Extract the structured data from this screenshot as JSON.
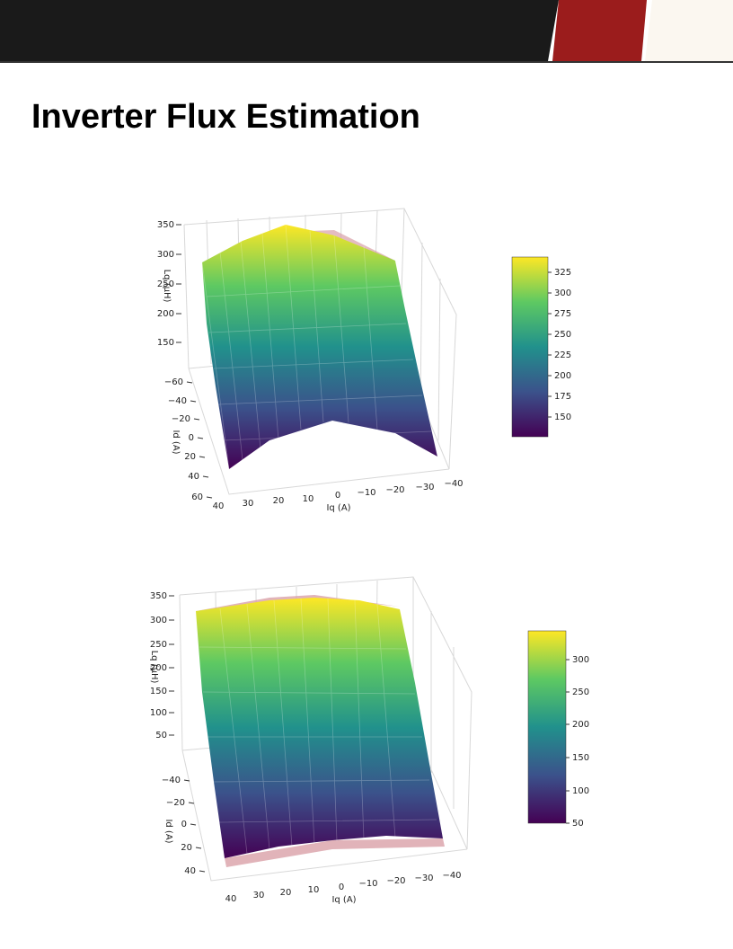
{
  "header": {
    "title": "Inverter Flux Estimation"
  },
  "figures": [
    {
      "z_label": "Lq (µH)",
      "y_label": "Id (A)",
      "x_label": "Iq (A)",
      "zticks": [
        "350",
        "300",
        "250",
        "200",
        "150"
      ],
      "yticks": [
        "−60",
        "−40",
        "−20",
        "0",
        "20",
        "40",
        "60"
      ],
      "xticks": [
        "40",
        "30",
        "20",
        "10",
        "0",
        "−10",
        "−20",
        "−30",
        "−40"
      ],
      "colorbar_ticks": [
        "325",
        "300",
        "275",
        "250",
        "225",
        "200",
        "175",
        "150"
      ]
    },
    {
      "z_label": "Lq (µH)",
      "y_label": "Id (A)",
      "x_label": "Iq (A)",
      "zticks": [
        "350",
        "300",
        "250",
        "200",
        "150",
        "100",
        "50"
      ],
      "yticks": [
        "−40",
        "−20",
        "0",
        "20",
        "40"
      ],
      "xticks": [
        "40",
        "30",
        "20",
        "10",
        "0",
        "−10",
        "−20",
        "−30",
        "−40"
      ],
      "colorbar_ticks": [
        "300",
        "250",
        "200",
        "150",
        "100",
        "50"
      ]
    }
  ]
}
